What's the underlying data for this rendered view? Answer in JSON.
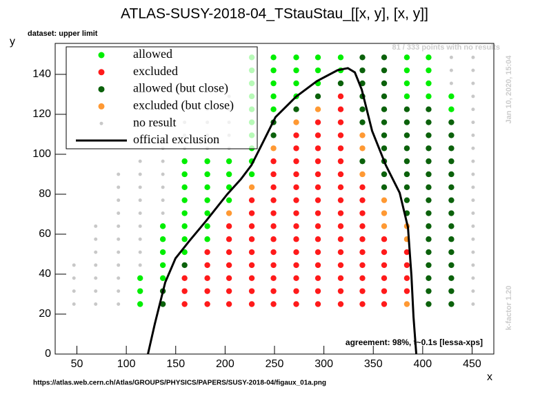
{
  "chart_data": {
    "type": "scatter",
    "title": "ATLAS-SUSY-2018-04_TStauStau_[[x, y], [x, y]]",
    "dataset_label": "dataset: upper limit",
    "no_result_note": "81 / 333 points with no results",
    "timestamp": "Jan 10, 2020, 15:04",
    "kfactor": "k-factor 1.20",
    "agreement": "agreement: 98%, t~0.1s [lessa-xps]",
    "source_url": "https://atlas.web.cern.ch/Atlas/GROUPS/PHYSICS/PAPERS/SUSY-2018-04/figaux_01a.png",
    "x_label": "x",
    "y_label": "y",
    "xlim": [
      28,
      472
    ],
    "ylim": [
      0,
      155.5
    ],
    "xticks": [
      50,
      100,
      150,
      200,
      250,
      300,
      350,
      400,
      450
    ],
    "yticks": [
      0,
      20,
      40,
      60,
      80,
      100,
      120,
      140
    ],
    "legend": "upper left",
    "series": [
      {
        "name": "allowed",
        "color": "#00ee00",
        "x": [
          114,
          114,
          114,
          137,
          137,
          137,
          137,
          137,
          159,
          159,
          159,
          159,
          159,
          159,
          159,
          159,
          182,
          182,
          182,
          182,
          182,
          182,
          182,
          204,
          204,
          204,
          204,
          227,
          227,
          227,
          227,
          227,
          227,
          227,
          227,
          227,
          227,
          249,
          249,
          249,
          249,
          249,
          272,
          272,
          272,
          272,
          294,
          294,
          294,
          317,
          317,
          384,
          384,
          384,
          384,
          406,
          406,
          406,
          406,
          429,
          429
        ],
        "y": [
          25,
          31.5,
          38,
          38,
          44.5,
          51,
          57.5,
          64,
          51,
          57.5,
          64,
          70.5,
          77,
          83.5,
          90,
          96.5,
          57.5,
          64,
          70.5,
          77,
          83.5,
          90,
          96.5,
          77,
          83.5,
          90,
          96.5,
          90,
          96.5,
          103,
          109.5,
          116,
          122.5,
          129,
          135.5,
          142,
          148.5,
          122.5,
          129,
          135.5,
          142,
          148.5,
          129,
          135.5,
          142,
          148.5,
          135.5,
          142,
          148.5,
          142,
          148.5,
          129,
          135.5,
          142,
          148.5,
          129,
          135.5,
          142,
          148.5,
          122.5,
          129
        ]
      },
      {
        "name": "excluded",
        "color": "#ff1a1a",
        "x": [
          159,
          159,
          159,
          182,
          182,
          182,
          182,
          182,
          204,
          204,
          204,
          204,
          204,
          204,
          204,
          227,
          227,
          227,
          227,
          227,
          227,
          227,
          227,
          227,
          249,
          249,
          249,
          249,
          249,
          249,
          249,
          249,
          249,
          249,
          249,
          249,
          272,
          272,
          272,
          272,
          272,
          272,
          272,
          272,
          272,
          272,
          272,
          272,
          272,
          272,
          294,
          294,
          294,
          294,
          294,
          294,
          294,
          294,
          294,
          294,
          294,
          294,
          294,
          294,
          294,
          317,
          317,
          317,
          317,
          317,
          317,
          317,
          317,
          317,
          317,
          317,
          317,
          317,
          317,
          317,
          317,
          317,
          339,
          339,
          339,
          339,
          339,
          339,
          339,
          339,
          339,
          339,
          361,
          361,
          361,
          361,
          361,
          361,
          384,
          384,
          384,
          384
        ],
        "y": [
          25,
          31.5,
          38,
          25,
          31.5,
          38,
          44.5,
          51,
          25,
          31.5,
          38,
          44.5,
          51,
          57.5,
          64,
          25,
          31.5,
          38,
          44.5,
          51,
          57.5,
          64,
          70.5,
          77,
          25,
          31.5,
          38,
          44.5,
          51,
          57.5,
          64,
          70.5,
          77,
          83.5,
          90,
          96.5,
          25,
          31.5,
          38,
          44.5,
          51,
          57.5,
          64,
          70.5,
          77,
          83.5,
          90,
          96.5,
          103,
          109.5,
          25,
          31.5,
          38,
          44.5,
          51,
          57.5,
          64,
          70.5,
          77,
          83.5,
          90,
          96.5,
          103,
          109.5,
          116,
          25,
          31.5,
          38,
          44.5,
          51,
          57.5,
          64,
          70.5,
          77,
          83.5,
          90,
          96.5,
          103,
          109.5,
          116,
          122.5,
          129,
          25,
          31.5,
          38,
          44.5,
          51,
          57.5,
          64,
          70.5,
          77,
          83.5,
          25,
          31.5,
          38,
          44.5,
          51,
          57.5,
          31.5,
          38,
          44.5,
          51
        ]
      },
      {
        "name": "allowed (but close)",
        "color": "#0b610b",
        "x": [
          137,
          137,
          159,
          249,
          249,
          272,
          294,
          317,
          339,
          339,
          339,
          339,
          339,
          339,
          339,
          361,
          361,
          361,
          361,
          361,
          361,
          361,
          361,
          361,
          361,
          361,
          384,
          384,
          384,
          384,
          384,
          384,
          384,
          384,
          384,
          406,
          406,
          406,
          406,
          406,
          406,
          406,
          406,
          406,
          406,
          406,
          406,
          406,
          406,
          406,
          406,
          429,
          429,
          429,
          429,
          429,
          429,
          429,
          429,
          429,
          429,
          429,
          429,
          429,
          429,
          429
        ],
        "y": [
          25,
          31.5,
          44.5,
          109.5,
          116,
          122.5,
          129,
          135.5,
          96.5,
          116,
          122.5,
          129,
          135.5,
          142,
          148.5,
          83.5,
          90,
          96.5,
          103,
          109.5,
          116,
          122.5,
          129,
          135.5,
          142,
          148.5,
          70.5,
          77,
          83.5,
          90,
          96.5,
          103,
          109.5,
          116,
          122.5,
          25,
          31.5,
          38,
          44.5,
          51,
          57.5,
          64,
          70.5,
          77,
          83.5,
          90,
          96.5,
          103,
          109.5,
          116,
          122.5,
          25,
          31.5,
          38,
          44.5,
          51,
          57.5,
          64,
          70.5,
          77,
          83.5,
          90,
          96.5,
          103,
          109.5,
          116
        ]
      },
      {
        "name": "excluded (but close)",
        "color": "#ff9933",
        "x": [
          204,
          227,
          249,
          272,
          294,
          339,
          339,
          339,
          361,
          361,
          361,
          384,
          384,
          384
        ],
        "y": [
          70.5,
          83.5,
          103,
          116,
          122.5,
          90,
          103,
          109.5,
          64,
          70.5,
          77,
          25,
          57.5,
          64
        ]
      },
      {
        "name": "no result",
        "color": "#c8c8c8",
        "x": [
          47,
          47,
          47,
          47,
          69,
          69,
          69,
          69,
          69,
          69,
          69,
          92,
          92,
          92,
          92,
          92,
          92,
          92,
          92,
          92,
          92,
          92,
          114,
          114,
          114,
          114,
          114,
          114,
          114,
          114,
          114,
          137,
          137,
          137,
          137,
          137,
          137,
          159,
          159,
          159,
          182,
          182,
          182,
          182,
          204,
          204,
          204,
          204,
          204,
          429,
          429,
          429,
          451,
          451,
          451,
          451,
          451,
          451,
          451,
          451,
          451,
          451,
          451,
          451,
          451,
          451,
          451,
          451,
          451,
          451,
          451,
          451
        ],
        "y": [
          25,
          31.5,
          38,
          44.5,
          25,
          31.5,
          38,
          44.5,
          51,
          57.5,
          64,
          25,
          31.5,
          38,
          44.5,
          51,
          57.5,
          64,
          70.5,
          77,
          83.5,
          90,
          44.5,
          51,
          57.5,
          64,
          70.5,
          77,
          83.5,
          90,
          96.5,
          70.5,
          77,
          83.5,
          90,
          96.5,
          103,
          103,
          109.5,
          116,
          103,
          109.5,
          116,
          122.5,
          103,
          109.5,
          116,
          122.5,
          129,
          135.5,
          142,
          148.5,
          25,
          31.5,
          38,
          44.5,
          51,
          57.5,
          64,
          70.5,
          77,
          83.5,
          90,
          96.5,
          103,
          109.5,
          116,
          122.5,
          129,
          135.5,
          142,
          148.5
        ]
      },
      {
        "name": "official exclusion",
        "color": "#000000",
        "line": true,
        "x": [
          121.9,
          128.9,
          139.4,
          149.8,
          163.8,
          181.2,
          202.2,
          216.1,
          226.6,
          237.1,
          251.0,
          272.0,
          292.9,
          313.9,
          324.3,
          331.3,
          338.3,
          348.8,
          362.7,
          376.7,
          385.1,
          388.6,
          390.7,
          393.5
        ],
        "y": [
          0,
          15.2,
          35.9,
          47.9,
          56.6,
          66.9,
          80.0,
          87.6,
          94.5,
          104.8,
          118.6,
          128.9,
          136.6,
          142.1,
          143.1,
          141.0,
          132.4,
          111.7,
          94.5,
          80.7,
          63.4,
          39.3,
          18.6,
          0
        ]
      }
    ]
  }
}
